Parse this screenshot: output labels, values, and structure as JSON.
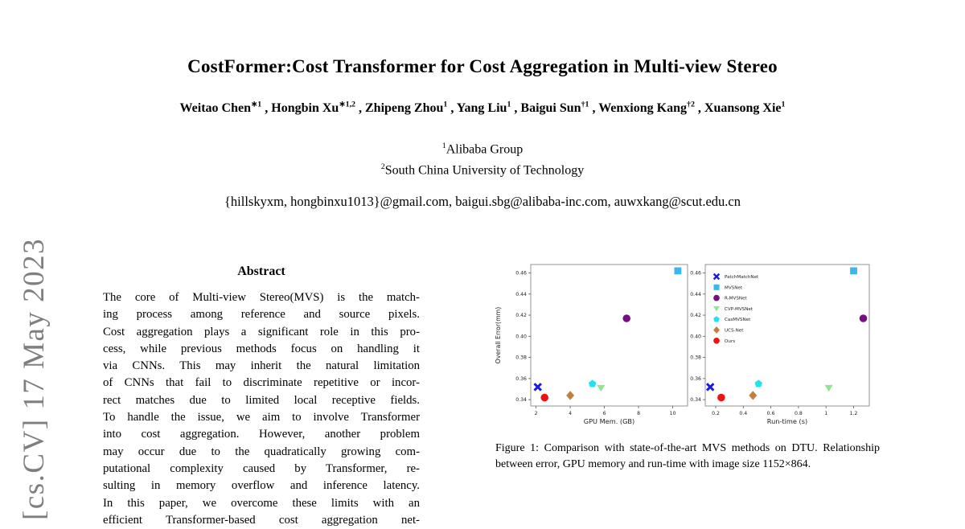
{
  "arxiv_sidebar": {
    "text": "[cs.CV] 17 May 2023",
    "color": "#7f7f7f"
  },
  "paper": {
    "title": "CostFormer:Cost Transformer for Cost Aggregation in Multi-view Stereo",
    "authors": [
      {
        "name": "Weitao Chen",
        "sup": "∗1"
      },
      {
        "name": "Hongbin Xu",
        "sup": "∗1,2"
      },
      {
        "name": "Zhipeng Zhou",
        "sup": "1"
      },
      {
        "name": "Yang Liu",
        "sup": "1"
      },
      {
        "name": "Baigui Sun",
        "sup": "†1"
      },
      {
        "name": "Wenxiong Kang",
        "sup": "†2"
      },
      {
        "name": "Xuansong Xie",
        "sup": "1"
      }
    ],
    "affiliations": [
      {
        "sup": "1",
        "text": "Alibaba Group"
      },
      {
        "sup": "2",
        "text": "South China University of Technology"
      }
    ],
    "emails": "{hillskyxm, hongbinxu1013}@gmail.com, baigui.sbg@alibaba-inc.com, auwxkang@scut.edu.cn"
  },
  "abstract": {
    "heading": "Abstract",
    "lines": [
      "The core of Multi-view Stereo(MVS) is the match-",
      "ing process among reference and source pixels.",
      "Cost aggregation plays a significant role in this pro-",
      "cess, while previous methods focus on handling it",
      "via CNNs. This may inherit the natural limitation",
      "of CNNs that fail to discriminate repetitive or incor-",
      "rect matches due to limited local receptive fields.",
      "To handle the issue, we aim to involve Transformer",
      "into cost aggregation. However, another problem",
      "may occur due to the quadratically growing com-",
      "putational complexity caused by Transformer, re-",
      "sulting in memory overflow and inference latency.",
      "In this paper, we overcome these limits with an",
      "efficient Transformer-based cost aggregation net-"
    ]
  },
  "figure": {
    "caption": "Figure 1: Comparison with state-of-the-art MVS methods on DTU. Relationship between error, GPU memory and run-time with image size 1152×864."
  },
  "chart_data": {
    "type": "scatter",
    "title": "",
    "ylabel": "Overall Error(mm)",
    "ylim": [
      0.334,
      0.468
    ],
    "yticks": [
      0.34,
      0.36,
      0.38,
      0.4,
      0.42,
      0.44,
      0.46
    ],
    "grid": false,
    "plots": [
      {
        "id": "gpu",
        "xlabel": "GPU Mem. (GB)",
        "xkey": "gpu_mem_gb",
        "xlim": [
          1.69,
          10.87
        ],
        "xticks": [
          2,
          4,
          6,
          8,
          10
        ],
        "show_ylabel": true,
        "legend": false
      },
      {
        "id": "runtime",
        "xlabel": "Run-time (s)",
        "xkey": "runtime_s",
        "xlim": [
          0.124,
          1.314
        ],
        "xticks": [
          0.2,
          0.4,
          0.6,
          0.8,
          1.0,
          1.2
        ],
        "show_ylabel": false,
        "legend": "upper-left"
      }
    ],
    "series": [
      {
        "name": "PatchMatchNet",
        "marker": "x",
        "color": "#1b1be0",
        "gpu_mem_gb": 2.1,
        "runtime_s": 0.16,
        "overall_error_mm": 0.352
      },
      {
        "name": "MVSNet",
        "marker": "square",
        "color": "#3ab7ec",
        "gpu_mem_gb": 10.3,
        "runtime_s": 1.2,
        "overall_error_mm": 0.462
      },
      {
        "name": "R-MVSNet",
        "marker": "circle",
        "color": "#751083",
        "gpu_mem_gb": 7.3,
        "runtime_s": 1.27,
        "overall_error_mm": 0.417
      },
      {
        "name": "CVP-MVSNet",
        "marker": "triangle-down",
        "color": "#90e690",
        "gpu_mem_gb": 5.8,
        "runtime_s": 1.02,
        "overall_error_mm": 0.351
      },
      {
        "name": "CasMVSNet",
        "marker": "pentagon",
        "color": "#1fe4f0",
        "gpu_mem_gb": 5.3,
        "runtime_s": 0.51,
        "overall_error_mm": 0.355
      },
      {
        "name": "UCS-Net",
        "marker": "diamond",
        "color": "#c1803e",
        "gpu_mem_gb": 4.0,
        "runtime_s": 0.47,
        "overall_error_mm": 0.344
      },
      {
        "name": "Ours",
        "marker": "circle",
        "color": "#ee1212",
        "gpu_mem_gb": 2.5,
        "runtime_s": 0.24,
        "overall_error_mm": 0.342
      }
    ]
  }
}
